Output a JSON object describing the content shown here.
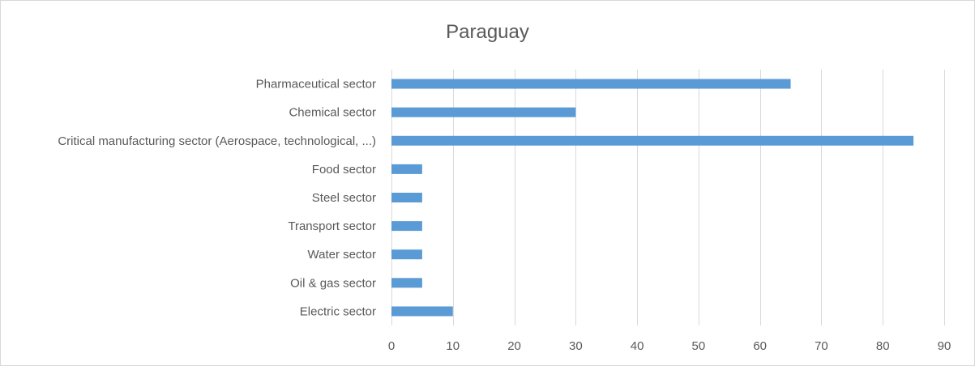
{
  "chart_data": {
    "type": "bar",
    "orientation": "horizontal",
    "title": "Paraguay",
    "categories": [
      "Pharmaceutical sector",
      "Chemical sector",
      "Critical manufacturing sector (Aerospace, technological, ...)",
      "Food sector",
      "Steel sector",
      "Transport sector",
      "Water sector",
      "Oil & gas sector",
      "Electric sector"
    ],
    "values": [
      65,
      30,
      85,
      5,
      5,
      5,
      5,
      5,
      10
    ],
    "xlim": [
      0,
      90
    ],
    "xticks": [
      "0",
      "10",
      "20",
      "30",
      "40",
      "50",
      "60",
      "70",
      "80",
      "90"
    ],
    "grid": true,
    "legend": "none",
    "bar_color": "#5b9bd5"
  }
}
